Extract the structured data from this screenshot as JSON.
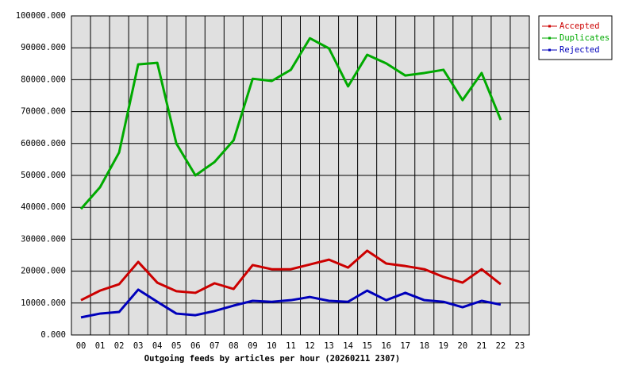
{
  "chart_data": {
    "type": "line",
    "x_label": "Outgoing feeds by articles per hour (20260211 2307)",
    "categories": [
      "00",
      "01",
      "02",
      "03",
      "04",
      "05",
      "06",
      "07",
      "08",
      "09",
      "10",
      "11",
      "12",
      "13",
      "14",
      "15",
      "16",
      "17",
      "18",
      "19",
      "20",
      "21",
      "22",
      "23"
    ],
    "series": [
      {
        "name": "Accepted",
        "color": "#cc0000",
        "values": [
          10900,
          13900,
          15900,
          22900,
          16400,
          13700,
          13200,
          16200,
          14400,
          21900,
          20600,
          20600,
          22100,
          23600,
          21100,
          26400,
          22400,
          21600,
          20600,
          18200,
          16400,
          20600,
          15900,
          null
        ]
      },
      {
        "name": "Duplicates",
        "color": "#00aa00",
        "values": [
          39500,
          46300,
          57200,
          84800,
          85300,
          60000,
          50000,
          54200,
          61000,
          80300,
          79600,
          83100,
          93000,
          89800,
          77900,
          87800,
          85100,
          81300,
          82100,
          83100,
          73600,
          82100,
          67400,
          null
        ]
      },
      {
        "name": "Rejected",
        "color": "#0000bb",
        "values": [
          5500,
          6700,
          7200,
          14200,
          10400,
          6700,
          6200,
          7500,
          9200,
          10700,
          10400,
          10900,
          11900,
          10700,
          10400,
          13900,
          10900,
          13200,
          10900,
          10400,
          8700,
          10700,
          9500,
          null
        ]
      }
    ],
    "ylim": [
      0,
      100000
    ],
    "yticks": [
      {
        "value": 0,
        "label": "0.000"
      },
      {
        "value": 10000,
        "label": "10000.000"
      },
      {
        "value": 20000,
        "label": "20000.000"
      },
      {
        "value": 30000,
        "label": "30000.000"
      },
      {
        "value": 40000,
        "label": "40000.000"
      },
      {
        "value": 50000,
        "label": "50000.000"
      },
      {
        "value": 60000,
        "label": "60000.000"
      },
      {
        "value": 70000,
        "label": "70000.000"
      },
      {
        "value": 80000,
        "label": "80000.000"
      },
      {
        "value": 90000,
        "label": "90000.000"
      },
      {
        "value": 100000,
        "label": "100000.000"
      }
    ],
    "grid": true
  }
}
